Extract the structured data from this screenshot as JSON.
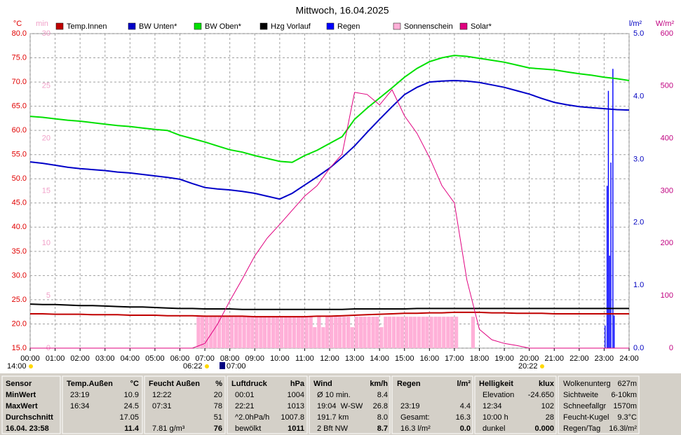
{
  "chart_data": {
    "type": "line",
    "title": "Mittwoch, 16.04.2025",
    "xlim": [
      0,
      24
    ],
    "xticks": [
      {
        "value": 0,
        "label": "00:00"
      },
      {
        "value": 1,
        "label": "01:00"
      },
      {
        "value": 2,
        "label": "02:00"
      },
      {
        "value": 3,
        "label": "03:00"
      },
      {
        "value": 4,
        "label": "04:00"
      },
      {
        "value": 5,
        "label": "05:00"
      },
      {
        "value": 6,
        "label": "06:00"
      },
      {
        "value": 7,
        "label": "07:00"
      },
      {
        "value": 8,
        "label": "08:00"
      },
      {
        "value": 9,
        "label": "09:00"
      },
      {
        "value": 10,
        "label": "10:00"
      },
      {
        "value": 11,
        "label": "11:00"
      },
      {
        "value": 12,
        "label": "12:00"
      },
      {
        "value": 13,
        "label": "13:00"
      },
      {
        "value": 14,
        "label": "14:00"
      },
      {
        "value": 15,
        "label": "15:00"
      },
      {
        "value": 16,
        "label": "16:00"
      },
      {
        "value": 17,
        "label": "17:00"
      },
      {
        "value": 18,
        "label": "18:00"
      },
      {
        "value": 19,
        "label": "19:00"
      },
      {
        "value": 20,
        "label": "20:00"
      },
      {
        "value": 21,
        "label": "21:00"
      },
      {
        "value": 22,
        "label": "22:00"
      },
      {
        "value": 23,
        "label": "23:00"
      },
      {
        "value": 24,
        "label": "24:00"
      }
    ],
    "y_label": "°C",
    "ylim": [
      15,
      80
    ],
    "yticks": [
      {
        "value": 80,
        "label": "80.0"
      },
      {
        "value": 75,
        "label": "75.0"
      },
      {
        "value": 70,
        "label": "70.0"
      },
      {
        "value": 65,
        "label": "65.0"
      },
      {
        "value": 60,
        "label": "60.0"
      },
      {
        "value": 55,
        "label": "55.0"
      },
      {
        "value": 50,
        "label": "50.0"
      },
      {
        "value": 45,
        "label": "45.0"
      },
      {
        "value": 40,
        "label": "40.0"
      },
      {
        "value": 35,
        "label": "35.0"
      },
      {
        "value": 30,
        "label": "30.0"
      },
      {
        "value": 25,
        "label": "25.0"
      },
      {
        "value": 20,
        "label": "20.0"
      },
      {
        "value": 15,
        "label": "15.0"
      }
    ],
    "y2_label": "min",
    "y2lim": [
      0,
      30
    ],
    "y2ticks": [
      30,
      25,
      20,
      15,
      10,
      5,
      0
    ],
    "y3_label": "l/m²",
    "y3lim": [
      0,
      5
    ],
    "y3ticks": [
      {
        "value": 5,
        "label": "5.0"
      },
      {
        "value": 4,
        "label": "4.0"
      },
      {
        "value": 3,
        "label": "3.0"
      },
      {
        "value": 2,
        "label": "2.0"
      },
      {
        "value": 1,
        "label": "1.0"
      },
      {
        "value": 0,
        "label": "0.0"
      }
    ],
    "y4_label": "W/m²",
    "y4lim": [
      0,
      600
    ],
    "y4ticks": [
      600,
      500,
      400,
      300,
      200,
      100,
      0
    ],
    "grid": true,
    "x": [
      0,
      0.5,
      1,
      1.5,
      2,
      2.5,
      3,
      3.5,
      4,
      4.5,
      5,
      5.5,
      6,
      6.5,
      7,
      7.5,
      8,
      8.5,
      9,
      9.5,
      10,
      10.5,
      11,
      11.5,
      12,
      12.5,
      13,
      13.5,
      14,
      14.5,
      15,
      15.5,
      16,
      16.5,
      17,
      17.5,
      18,
      18.5,
      19,
      19.5,
      20,
      20.5,
      21,
      21.5,
      22,
      22.5,
      23,
      23.5,
      24
    ],
    "series": [
      {
        "name": "Temp.Innen",
        "color": "#c00000",
        "type": "line",
        "axis": "y",
        "values": [
          22.1,
          22.1,
          22.0,
          22.0,
          22.0,
          21.9,
          21.9,
          21.9,
          21.8,
          21.8,
          21.8,
          21.7,
          21.7,
          21.7,
          21.6,
          21.6,
          21.6,
          21.6,
          21.5,
          21.5,
          21.5,
          21.5,
          21.5,
          21.6,
          21.6,
          21.7,
          21.8,
          21.9,
          22.0,
          22.1,
          22.2,
          22.2,
          22.3,
          22.3,
          22.4,
          22.4,
          22.4,
          22.3,
          22.3,
          22.2,
          22.2,
          22.2,
          22.1,
          22.1,
          22.1,
          22.1,
          22.1,
          22.1,
          22.1
        ]
      },
      {
        "name": "BW Unten*",
        "color": "#0000c8",
        "type": "line",
        "axis": "y",
        "values": [
          53.5,
          53.2,
          52.8,
          52.4,
          52.1,
          51.9,
          51.7,
          51.4,
          51.2,
          50.9,
          50.6,
          50.3,
          49.9,
          49.0,
          48.2,
          47.9,
          47.7,
          47.4,
          47.0,
          46.4,
          45.8,
          47.0,
          48.7,
          50.4,
          52.2,
          54.4,
          56.8,
          59.6,
          62.3,
          64.9,
          67.4,
          68.9,
          70.0,
          70.2,
          70.3,
          70.2,
          69.9,
          69.4,
          68.9,
          68.2,
          67.5,
          66.6,
          65.8,
          65.3,
          64.9,
          64.7,
          64.5,
          64.3,
          64.2
        ]
      },
      {
        "name": "BW Oben*",
        "color": "#00e000",
        "type": "line",
        "axis": "y",
        "values": [
          62.9,
          62.7,
          62.4,
          62.1,
          61.9,
          61.6,
          61.3,
          61.0,
          60.8,
          60.5,
          60.2,
          60.0,
          59.0,
          58.3,
          57.6,
          56.8,
          56.0,
          55.5,
          54.8,
          54.2,
          53.6,
          53.4,
          54.8,
          55.9,
          57.3,
          58.7,
          62.3,
          64.6,
          66.7,
          68.8,
          71.0,
          72.8,
          74.2,
          75.0,
          75.5,
          75.3,
          74.9,
          74.5,
          74.1,
          73.5,
          72.9,
          72.7,
          72.5,
          72.1,
          71.7,
          71.4,
          71.0,
          70.7,
          70.3
        ]
      },
      {
        "name": "Hzg Vorlauf",
        "color": "#000000",
        "type": "line",
        "axis": "y",
        "values": [
          24.1,
          24.0,
          24.0,
          23.9,
          23.8,
          23.8,
          23.7,
          23.6,
          23.5,
          23.5,
          23.4,
          23.3,
          23.2,
          23.2,
          23.1,
          23.1,
          23.1,
          23.0,
          23.0,
          23.0,
          23.0,
          23.0,
          23.0,
          23.0,
          23.0,
          23.0,
          23.1,
          23.1,
          23.1,
          23.1,
          23.1,
          23.2,
          23.2,
          23.2,
          23.2,
          23.2,
          23.2,
          23.2,
          23.2,
          23.2,
          23.2,
          23.2,
          23.2,
          23.2,
          23.2,
          23.2,
          23.2,
          23.2,
          23.2
        ]
      },
      {
        "name": "Regen",
        "color": "#0000ff",
        "type": "bar",
        "axis": "y3",
        "x": [
          23.02,
          23.1,
          23.15,
          23.2,
          23.25,
          23.33,
          23.38
        ],
        "values": [
          0.36,
          2.58,
          4.09,
          1.47,
          2.95,
          4.44,
          0.52
        ]
      },
      {
        "name": "Sonnenschein",
        "color": "#ffb0d8",
        "type": "bar",
        "axis": "y2",
        "x": [
          6.67,
          6.83,
          7,
          7.17,
          7.33,
          7.5,
          7.67,
          7.83,
          8,
          8.17,
          8.33,
          8.5,
          8.67,
          8.83,
          9,
          9.17,
          9.33,
          9.5,
          9.67,
          9.83,
          10,
          10.17,
          10.33,
          10.5,
          10.67,
          10.83,
          11,
          11.17,
          11.33,
          11.5,
          11.67,
          11.83,
          12,
          12.17,
          12.33,
          12.5,
          12.67,
          12.83,
          13,
          13.17,
          13.33,
          13.5,
          13.67,
          13.83,
          14,
          14.17,
          14.33,
          14.5,
          14.67,
          14.83,
          15,
          15.17,
          15.33,
          15.5,
          15.67,
          15.83,
          16,
          16.17,
          16.33,
          16.5,
          16.67,
          16.83,
          17,
          17.67
        ],
        "values": [
          3,
          3,
          3,
          3,
          3,
          3,
          3,
          3,
          3,
          3,
          3,
          3,
          3,
          3,
          3,
          3,
          3,
          3,
          3,
          3,
          3,
          3,
          3,
          3,
          3,
          3,
          3,
          3,
          2,
          3,
          2,
          3,
          3,
          3,
          3,
          3,
          3,
          2,
          3,
          3,
          3,
          3,
          3,
          3,
          2,
          3,
          3,
          3,
          3,
          3,
          3,
          3,
          3,
          3,
          3,
          3,
          3,
          3,
          3,
          3,
          3,
          3,
          3,
          3
        ]
      },
      {
        "name": "Solar*",
        "color": "#e0007f",
        "type": "line",
        "axis": "y4",
        "values": [
          0,
          0,
          0,
          0,
          0,
          0,
          0,
          0,
          0,
          0,
          0,
          0,
          0,
          0,
          9,
          45,
          90,
          132,
          176,
          210,
          236,
          263,
          290,
          310,
          343,
          370,
          488,
          484,
          464,
          493,
          443,
          410,
          364,
          310,
          277,
          130,
          36,
          16,
          9,
          5,
          0,
          0,
          0,
          0,
          0,
          0,
          0,
          0,
          0
        ]
      }
    ]
  },
  "annotations": [
    "14:00",
    "06:22",
    "07:00",
    "20:22"
  ],
  "table": {
    "sensor": [
      "Sensor",
      "MinWert",
      "MaxWert",
      "Durchschnitt",
      "16.04. 23:58"
    ],
    "columns": [
      {
        "header": [
          "Temp.Außen",
          "°C"
        ],
        "rows": [
          [
            "23:19",
            "10.9"
          ],
          [
            "16:34",
            "24.5"
          ],
          [
            null,
            "17.05"
          ],
          [
            null,
            "11.4"
          ]
        ]
      },
      {
        "header": [
          "Feucht Außen",
          "%"
        ],
        "rows": [
          [
            "12:22",
            "20"
          ],
          [
            "07:31",
            "78"
          ],
          [
            null,
            "51"
          ],
          [
            "7.81 g/m³",
            "76"
          ]
        ]
      },
      {
        "header": [
          "Luftdruck",
          "hPa"
        ],
        "rows": [
          [
            "00:01",
            "1004"
          ],
          [
            "22:21",
            "1013"
          ],
          [
            "^2.0hPa/h",
            "1007.8"
          ],
          [
            "bewölkt",
            "1011"
          ]
        ]
      },
      {
        "header": [
          "Wind",
          "km/h"
        ],
        "rows": [
          [
            "Ø 10 min.",
            "8.4"
          ],
          [
            "19:04  W-SW",
            "26.8"
          ],
          [
            "191.7 km",
            "8.0"
          ],
          [
            "2 Bft NW",
            "8.7"
          ]
        ]
      },
      {
        "header": [
          "Regen",
          "l/m²"
        ],
        "rows": [
          [
            null,
            null
          ],
          [
            "23:19",
            "4.4"
          ],
          [
            "Gesamt:",
            "16.3"
          ],
          [
            "16.3 l/m²",
            "0.0"
          ]
        ]
      },
      {
        "header": [
          "Helligkeit",
          "klux"
        ],
        "rows": [
          [
            "Elevation",
            "-24.650"
          ],
          [
            "12:34",
            "102"
          ],
          [
            "10:00 h",
            "28"
          ],
          [
            "dunkel",
            "0.000"
          ]
        ]
      }
    ],
    "extra": [
      [
        "Wolkenunterg",
        "627m"
      ],
      [
        "Sichtweite",
        "6-10km"
      ],
      [
        "Schneefallgr",
        "1570m"
      ],
      [
        "Feucht-Kugel",
        "9.3°C"
      ],
      [
        "Regen/Tag",
        "16.3l/m²"
      ]
    ]
  }
}
